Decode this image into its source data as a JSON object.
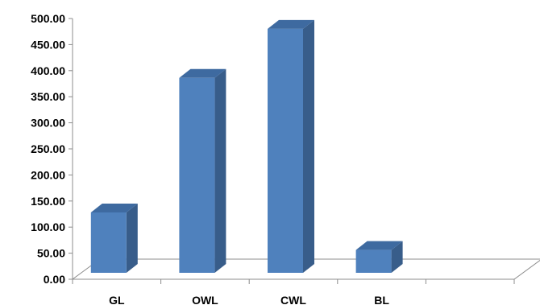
{
  "chart_data": {
    "type": "bar",
    "categories": [
      "GL",
      "OWL",
      "CWL",
      "BL",
      ""
    ],
    "values": [
      122,
      380,
      474,
      50,
      null
    ],
    "title": "",
    "xlabel": "",
    "ylabel": "",
    "ylim": [
      0,
      500
    ],
    "y_ticks": [
      "0.00",
      "50.00",
      "100.00",
      "150.00",
      "200.00",
      "250.00",
      "300.00",
      "350.00",
      "400.00",
      "450.00",
      "500.00"
    ],
    "grid": false,
    "legend": "none",
    "style": "3d-column",
    "colors": {
      "front": "#4f81bd",
      "side": "#385d8a",
      "top": "#3e6aa0",
      "floor": "#8c8c8c"
    }
  }
}
